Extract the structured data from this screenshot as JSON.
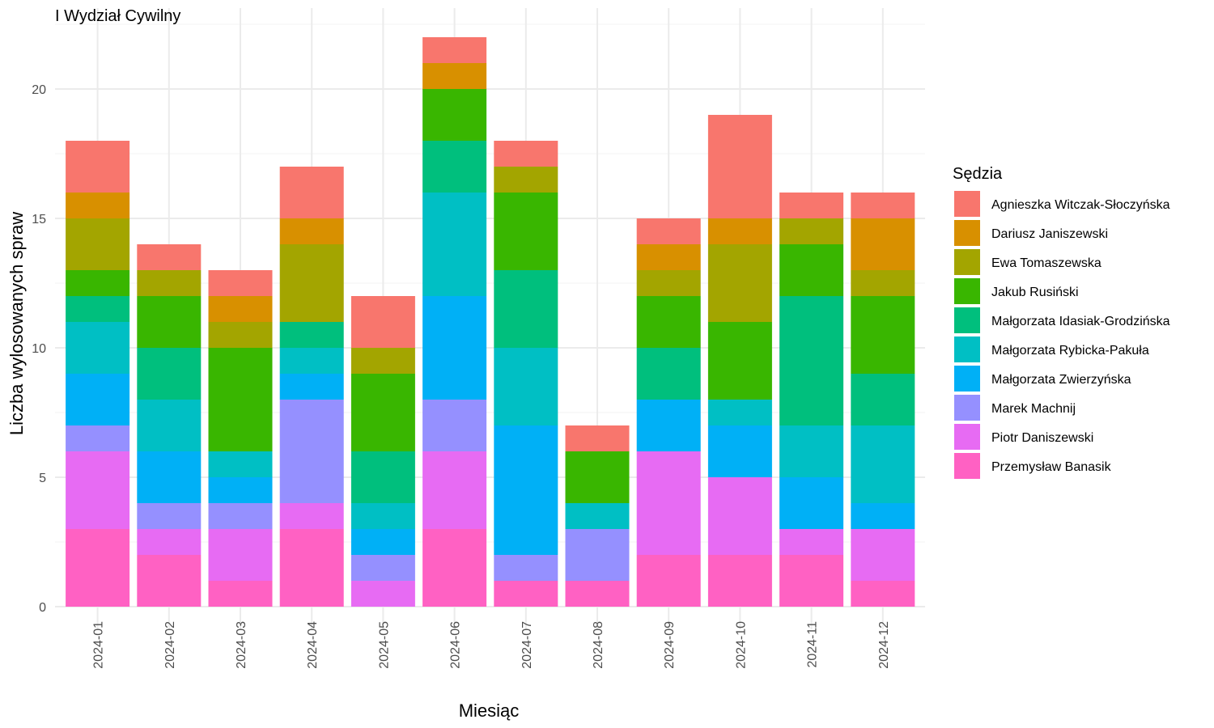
{
  "chart_data": {
    "type": "bar",
    "stacked": true,
    "title": "I Wydział Cywilny",
    "xlabel": "Miesiąc",
    "ylabel": "Liczba wylosowanych spraw",
    "ylim": [
      0,
      22.5
    ],
    "yticks": [
      0,
      5,
      10,
      15,
      20
    ],
    "grid": true,
    "legend_title": "Sędzia",
    "legend_position": "right",
    "categories": [
      "2024-01",
      "2024-02",
      "2024-03",
      "2024-04",
      "2024-05",
      "2024-06",
      "2024-07",
      "2024-08",
      "2024-09",
      "2024-10",
      "2024-11",
      "2024-12"
    ],
    "series": [
      {
        "name": "Przemysław Banasik",
        "color": "#FF61C3",
        "values": [
          3,
          2,
          1,
          3,
          0,
          3,
          1,
          1,
          2,
          2,
          2,
          1
        ]
      },
      {
        "name": "Piotr Daniszewski",
        "color": "#E76BF3",
        "values": [
          3,
          1,
          2,
          1,
          1,
          3,
          0,
          0,
          4,
          3,
          1,
          2
        ]
      },
      {
        "name": "Marek Machnij",
        "color": "#9590FF",
        "values": [
          1,
          1,
          1,
          4,
          1,
          2,
          1,
          2,
          0,
          0,
          0,
          0
        ]
      },
      {
        "name": "Małgorzata Zwierzyńska",
        "color": "#00B0F6",
        "values": [
          2,
          2,
          1,
          1,
          1,
          4,
          5,
          0,
          2,
          2,
          2,
          1
        ]
      },
      {
        "name": "Małgorzata Rybicka-Pakuła",
        "color": "#00BFC4",
        "values": [
          2,
          2,
          1,
          1,
          1,
          4,
          3,
          1,
          0,
          1,
          2,
          3
        ]
      },
      {
        "name": "Małgorzata Idasiak-Grodzińska",
        "color": "#00BF7D",
        "values": [
          1,
          2,
          0,
          1,
          2,
          2,
          3,
          0,
          2,
          0,
          5,
          2
        ]
      },
      {
        "name": "Jakub Rusiński",
        "color": "#39B600",
        "values": [
          1,
          2,
          4,
          0,
          3,
          2,
          3,
          2,
          2,
          3,
          2,
          3
        ]
      },
      {
        "name": "Ewa Tomaszewska",
        "color": "#A3A500",
        "values": [
          2,
          1,
          1,
          3,
          1,
          0,
          1,
          0,
          1,
          3,
          1,
          1
        ]
      },
      {
        "name": "Dariusz Janiszewski",
        "color": "#D89000",
        "values": [
          1,
          0,
          1,
          1,
          0,
          1,
          0,
          0,
          1,
          1,
          0,
          2
        ]
      },
      {
        "name": "Agnieszka Witczak-Słoczyńska",
        "color": "#F8766D",
        "values": [
          2,
          1,
          1,
          2,
          2,
          1,
          1,
          1,
          1,
          4,
          1,
          1
        ]
      }
    ]
  }
}
